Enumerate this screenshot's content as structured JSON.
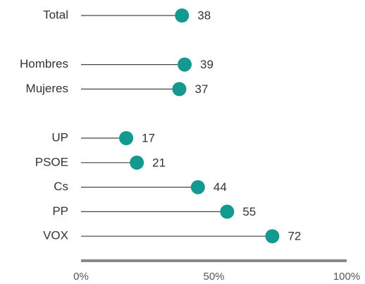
{
  "chart_data": {
    "type": "lollipop",
    "categories": [
      "Total",
      null,
      "Hombres",
      "Mujeres",
      null,
      "UP",
      "PSOE",
      "Cs",
      "PP",
      "VOX"
    ],
    "values": [
      38,
      null,
      39,
      37,
      null,
      17,
      21,
      44,
      55,
      72
    ],
    "color": "#13998f",
    "xlim": [
      0,
      100
    ],
    "xticks": [
      {
        "value": 0,
        "label": "0%"
      },
      {
        "value": 50,
        "label": "50%"
      },
      {
        "value": 100,
        "label": "100%"
      }
    ]
  }
}
